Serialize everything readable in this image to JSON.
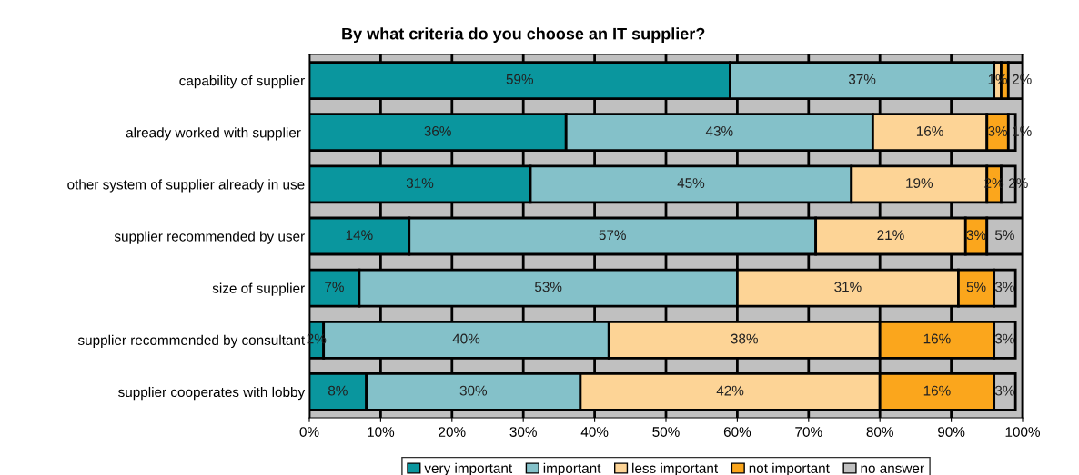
{
  "chart_data": {
    "type": "bar",
    "orientation": "horizontal",
    "stacked": true,
    "title": "By what criteria do you choose an IT supplier?",
    "categories": [
      "capability of supplier",
      "already worked with supplier ",
      "other system of supplier already in use",
      "supplier recommended by user",
      "size of supplier",
      "supplier recommended by consultant",
      "supplier cooperates with lobby"
    ],
    "series": [
      {
        "name": "very important",
        "color": "#0a969e",
        "values": [
          59,
          36,
          31,
          14,
          7,
          2,
          8
        ],
        "value_labels": [
          "59%",
          "36%",
          "31%",
          "14%",
          "7%",
          "2%",
          "8%"
        ]
      },
      {
        "name": "important",
        "color": "#84c1c9",
        "values": [
          37,
          43,
          45,
          57,
          53,
          40,
          30
        ],
        "value_labels": [
          "37%",
          "43%",
          "45%",
          "57%",
          "53%",
          "40%",
          "30%"
        ]
      },
      {
        "name": "less important",
        "color": "#fdd496",
        "values": [
          1,
          16,
          19,
          21,
          31,
          38,
          42
        ],
        "value_labels": [
          "1%",
          "16%",
          "19%",
          "21%",
          "31%",
          "38%",
          "42%"
        ]
      },
      {
        "name": "not important",
        "color": "#fba61c",
        "values": [
          1,
          3,
          2,
          3,
          5,
          16,
          16
        ],
        "value_labels": [
          null,
          "3%",
          "2%",
          "3%",
          "5%",
          "16%",
          "16%"
        ]
      },
      {
        "name": "no answer",
        "color": "#c0c0c0",
        "values": [
          2,
          1,
          2,
          5,
          3,
          3,
          3
        ],
        "value_labels": [
          "2%",
          "1%",
          "2%",
          "5%",
          "3%",
          "3%",
          "3%"
        ]
      }
    ],
    "xlim": [
      0,
      100
    ],
    "xticks": [
      {
        "value": 0,
        "label": "0%"
      },
      {
        "value": 10,
        "label": "10%"
      },
      {
        "value": 20,
        "label": "20%"
      },
      {
        "value": 30,
        "label": "30%"
      },
      {
        "value": 40,
        "label": "40%"
      },
      {
        "value": 50,
        "label": "50%"
      },
      {
        "value": 60,
        "label": "60%"
      },
      {
        "value": 70,
        "label": "70%"
      },
      {
        "value": 80,
        "label": "80%"
      },
      {
        "value": 90,
        "label": "90%"
      },
      {
        "value": 100,
        "label": "100%"
      }
    ],
    "grid": "x",
    "legend": "bottom"
  }
}
